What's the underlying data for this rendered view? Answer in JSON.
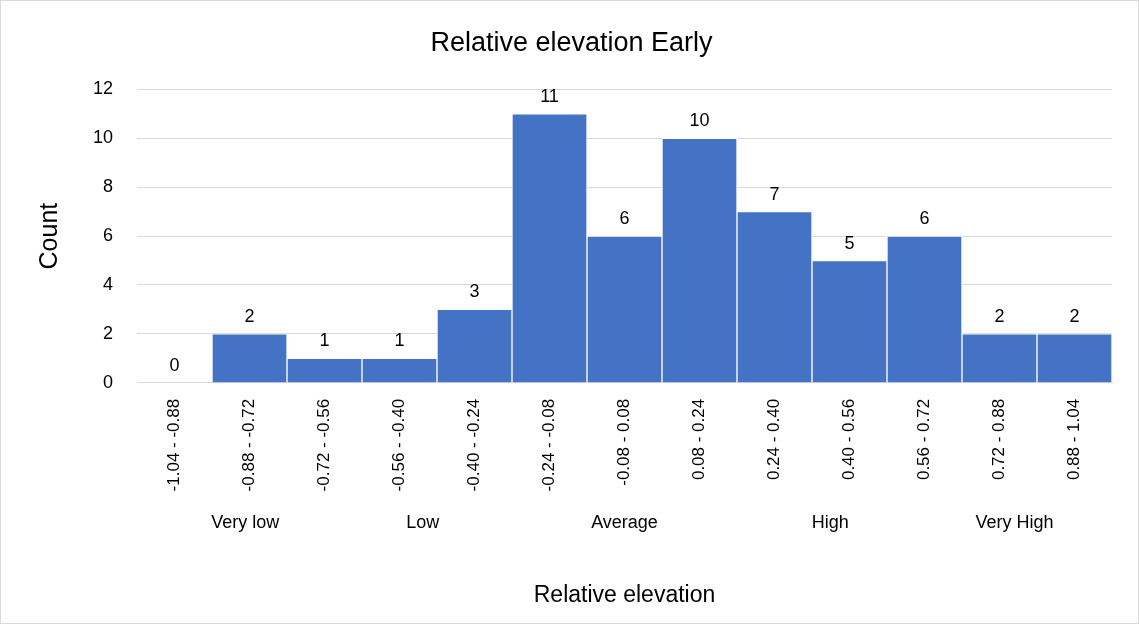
{
  "chart_data": {
    "type": "bar",
    "title": "Relative elevation Early",
    "xlabel": "Relative elevation",
    "ylabel": "Count",
    "categories": [
      "-1.04 - -0.88",
      "-0.88 - -0.72",
      "-0.72 - -0.56",
      "-0.56 - -0.40",
      "-0.40 - -0.24",
      "-0.24 - -0.08",
      "-0.08 - 0.08",
      "0.08 - 0.24",
      "0.24 - 0.40",
      "0.40 - 0.56",
      "0.56 - 0.72",
      "0.72 - 0.88",
      "0.88 - 1.04"
    ],
    "values": [
      0,
      2,
      1,
      1,
      3,
      11,
      6,
      10,
      7,
      5,
      6,
      2,
      2
    ],
    "color": "#4472c4",
    "ylim": [
      0,
      12
    ],
    "yticks": [
      0,
      2,
      4,
      6,
      8,
      10,
      12
    ],
    "grid": "y",
    "legend": false,
    "data_labels": true,
    "annotations": [
      "Very low",
      "Low",
      "Average",
      "High",
      "Very High"
    ]
  }
}
